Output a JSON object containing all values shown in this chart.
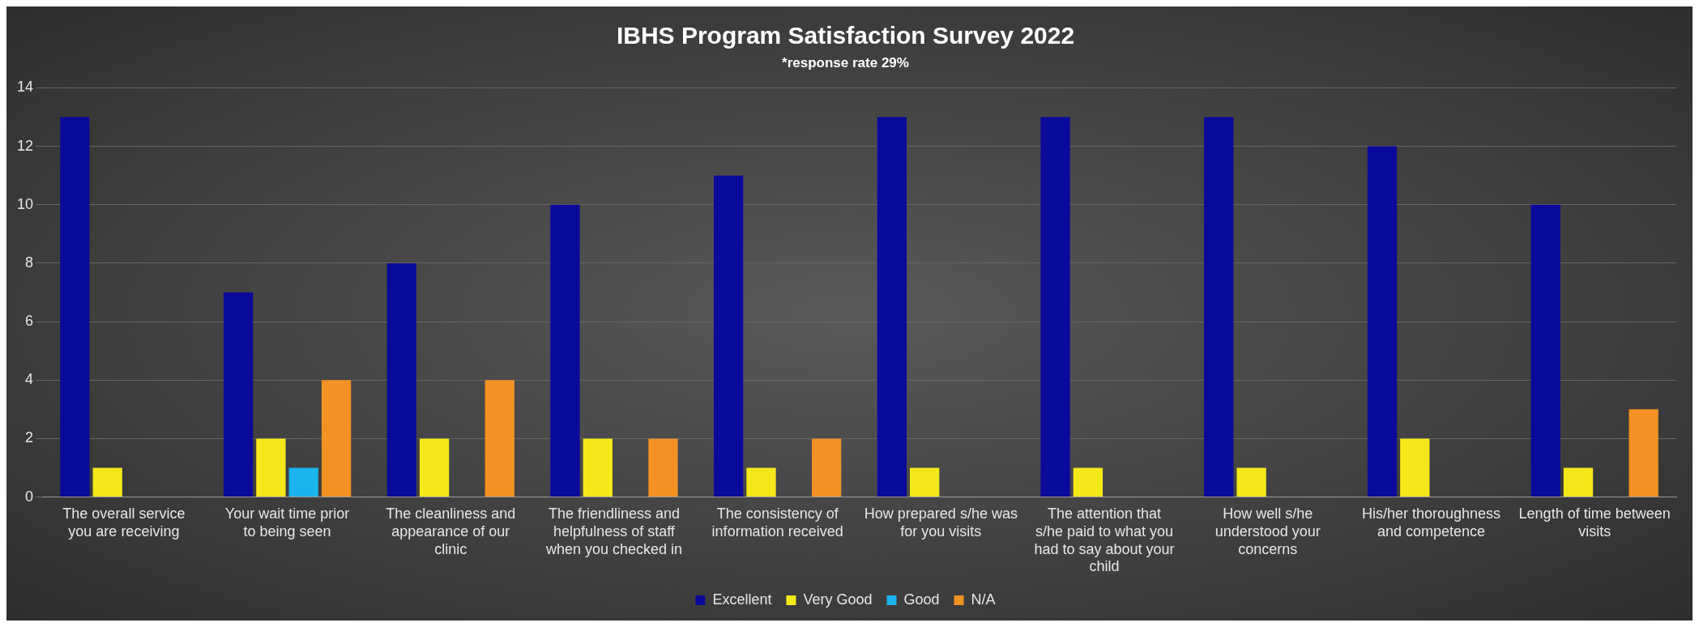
{
  "chart_data": {
    "type": "bar",
    "title": "IBHS Program Satisfaction Survey 2022",
    "subtitle": "*response rate 29%",
    "categories": [
      "The overall service you are receiving",
      "Your wait time prior to being seen",
      "The cleanliness and appearance of our clinic",
      "The friendliness and helpfulness of staff when you checked in",
      "The consistency of information received",
      "How prepared s/he was for you visits",
      "The attention that s/he paid to what you had to say about your child",
      "How well s/he understood your concerns",
      "His/her thoroughness and competence",
      "Length of time between visits"
    ],
    "series": [
      {
        "name": "Excellent",
        "color": "#0a0a9a",
        "values": [
          13,
          7,
          8,
          10,
          11,
          13,
          13,
          13,
          12,
          10
        ]
      },
      {
        "name": "Very Good",
        "color": "#f5e81a",
        "values": [
          1,
          2,
          2,
          2,
          1,
          1,
          1,
          1,
          2,
          1
        ]
      },
      {
        "name": "Good",
        "color": "#1cb4ec",
        "values": [
          0,
          1,
          0,
          0,
          0,
          0,
          0,
          0,
          0,
          0
        ]
      },
      {
        "name": "N/A",
        "color": "#f39224",
        "values": [
          0,
          4,
          4,
          2,
          2,
          0,
          0,
          0,
          0,
          3
        ]
      }
    ],
    "ylim": [
      0,
      14
    ],
    "yticks": [
      0,
      2,
      4,
      6,
      8,
      10,
      12,
      14
    ],
    "grid": "y",
    "legend": "bottom"
  }
}
